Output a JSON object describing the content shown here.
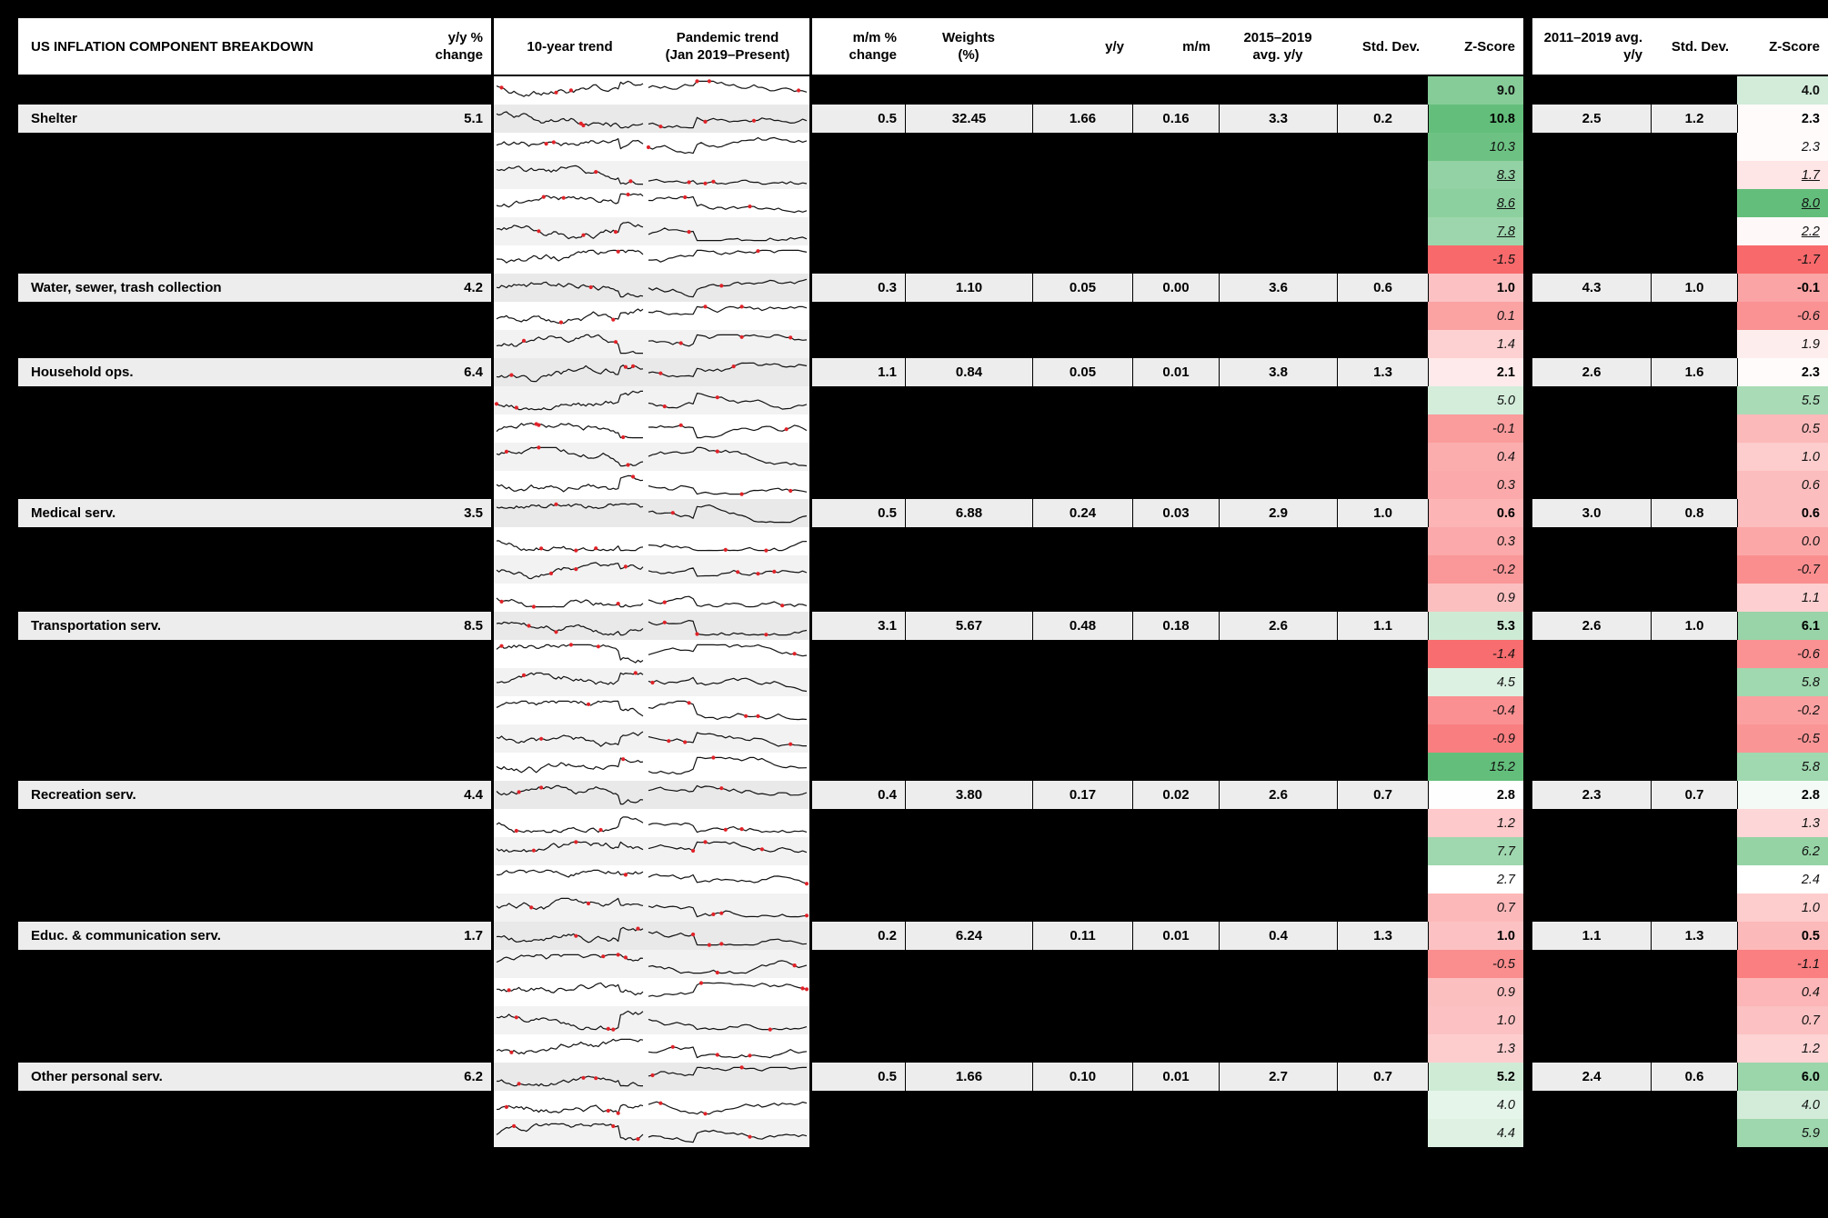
{
  "title": "US INFLATION COMPONENT BREAKDOWN",
  "headers": {
    "yy_change": [
      "y/y %",
      "change"
    ],
    "trend_10yr": "10-year trend",
    "pandemic_trend": [
      "Pandemic trend",
      "(Jan 2019–Present)"
    ],
    "mm_change": [
      "m/m %",
      "change"
    ],
    "weights": [
      "Weights",
      "(%)"
    ],
    "yy": "y/y",
    "mm": "m/m",
    "avg_2015_2019": [
      "2015–2019",
      "avg. y/y"
    ],
    "std_dev_1": "Std. Dev.",
    "z_score_1": "Z-Score",
    "avg_2011_2019": [
      "2011–2019 avg.",
      "y/y"
    ],
    "std_dev_2": "Std. Dev.",
    "z_score_2": "Z-Score"
  },
  "heatmap": {
    "red": "#F8696B",
    "white": "#FFFFFF",
    "green": "#63BE7B",
    "z1": {
      "min": -1.5,
      "mid": 2.7,
      "max": 10.8
    },
    "z2": {
      "min": -1.7,
      "mid": 2.4,
      "max": 8.0
    }
  },
  "marker_color": "#E12329",
  "spark_line_color": "#111111",
  "chart_data": {
    "type": "table",
    "title": "US INFLATION COMPONENT BREAKDOWN",
    "columns": [
      "Component",
      "y/y % change",
      "10-year trend",
      "Pandemic trend (Jan 2019–Present)",
      "m/m % change",
      "Weights (%)",
      "y/y",
      "m/m",
      "2015–2019 avg. y/y",
      "Std. Dev.",
      "Z-Score",
      "2011–2019 avg. y/y",
      "Std. Dev.",
      "Z-Score"
    ],
    "rows": [
      {
        "z1": "9.0",
        "z2": "4.0",
        "z_style": "bold"
      },
      {
        "label": "Shelter",
        "yy_change": "5.1",
        "mm_change": "0.5",
        "weight": "32.45",
        "yy": "1.66",
        "mm": "0.16",
        "avg_2015_2019": "3.3",
        "std_dev_1": "0.2",
        "z1": "10.8",
        "avg_2011_2019": "2.5",
        "std_dev_2": "1.2",
        "z2": "2.3"
      },
      {
        "z1": "10.3",
        "z2": "2.3"
      },
      {
        "z1": "8.3",
        "z2": "1.7",
        "z_style": "underline"
      },
      {
        "z1": "8.6",
        "z2": "8.0",
        "z_style": "underline"
      },
      {
        "z1": "7.8",
        "z2": "2.2",
        "z_style": "underline"
      },
      {
        "z1": "-1.5",
        "z2": "-1.7"
      },
      {
        "label": "Water, sewer, trash collection",
        "yy_change": "4.2",
        "mm_change": "0.3",
        "weight": "1.10",
        "yy": "0.05",
        "mm": "0.00",
        "avg_2015_2019": "3.6",
        "std_dev_1": "0.6",
        "z1": "1.0",
        "avg_2011_2019": "4.3",
        "std_dev_2": "1.0",
        "z2": "-0.1"
      },
      {
        "z1": "0.1",
        "z2": "-0.6"
      },
      {
        "z1": "1.4",
        "z2": "1.9"
      },
      {
        "label": "Household ops.",
        "yy_change": "6.4",
        "mm_change": "1.1",
        "weight": "0.84",
        "yy": "0.05",
        "mm": "0.01",
        "avg_2015_2019": "3.8",
        "std_dev_1": "1.3",
        "z1": "2.1",
        "avg_2011_2019": "2.6",
        "std_dev_2": "1.6",
        "z2": "2.3"
      },
      {
        "z1": "5.0",
        "z2": "5.5"
      },
      {
        "z1": "-0.1",
        "z2": "0.5"
      },
      {
        "z1": "0.4",
        "z2": "1.0"
      },
      {
        "z1": "0.3",
        "z2": "0.6"
      },
      {
        "label": "Medical serv.",
        "yy_change": "3.5",
        "mm_change": "0.5",
        "weight": "6.88",
        "yy": "0.24",
        "mm": "0.03",
        "avg_2015_2019": "2.9",
        "std_dev_1": "1.0",
        "z1": "0.6",
        "avg_2011_2019": "3.0",
        "std_dev_2": "0.8",
        "z2": "0.6"
      },
      {
        "z1": "0.3",
        "z2": "0.0"
      },
      {
        "z1": "-0.2",
        "z2": "-0.7"
      },
      {
        "z1": "0.9",
        "z2": "1.1"
      },
      {
        "label": "Transportation serv.",
        "yy_change": "8.5",
        "mm_change": "3.1",
        "weight": "5.67",
        "yy": "0.48",
        "mm": "0.18",
        "avg_2015_2019": "2.6",
        "std_dev_1": "1.1",
        "z1": "5.3",
        "avg_2011_2019": "2.6",
        "std_dev_2": "1.0",
        "z2": "6.1"
      },
      {
        "z1": "-1.4",
        "z2": "-0.6"
      },
      {
        "z1": "4.5",
        "z2": "5.8"
      },
      {
        "z1": "-0.4",
        "z2": "-0.2"
      },
      {
        "z1": "-0.9",
        "z2": "-0.5"
      },
      {
        "z1": "15.2",
        "z2": "5.8"
      },
      {
        "label": "Recreation serv.",
        "yy_change": "4.4",
        "mm_change": "0.4",
        "weight": "3.80",
        "yy": "0.17",
        "mm": "0.02",
        "avg_2015_2019": "2.6",
        "std_dev_1": "0.7",
        "z1": "2.8",
        "avg_2011_2019": "2.3",
        "std_dev_2": "0.7",
        "z2": "2.8"
      },
      {
        "z1": "1.2",
        "z2": "1.3"
      },
      {
        "z1": "7.7",
        "z2": "6.2"
      },
      {
        "z1": "2.7",
        "z2": "2.4"
      },
      {
        "z1": "0.7",
        "z2": "1.0"
      },
      {
        "label": "Educ. & communication serv.",
        "yy_change": "1.7",
        "mm_change": "0.2",
        "weight": "6.24",
        "yy": "0.11",
        "mm": "0.01",
        "avg_2015_2019": "0.4",
        "std_dev_1": "1.3",
        "z1": "1.0",
        "avg_2011_2019": "1.1",
        "std_dev_2": "1.3",
        "z2": "0.5"
      },
      {
        "z1": "-0.5",
        "z2": "-1.1"
      },
      {
        "z1": "0.9",
        "z2": "0.4"
      },
      {
        "z1": "1.0",
        "z2": "0.7"
      },
      {
        "z1": "1.3",
        "z2": "1.2"
      },
      {
        "label": "Other personal serv.",
        "yy_change": "6.2",
        "mm_change": "0.5",
        "weight": "1.66",
        "yy": "0.10",
        "mm": "0.01",
        "avg_2015_2019": "2.7",
        "std_dev_1": "0.7",
        "z1": "5.2",
        "avg_2011_2019": "2.4",
        "std_dev_2": "0.6",
        "z2": "6.0"
      },
      {
        "z1": "4.0",
        "z2": "4.0"
      },
      {
        "z1": "4.4",
        "z2": "5.9"
      }
    ]
  }
}
